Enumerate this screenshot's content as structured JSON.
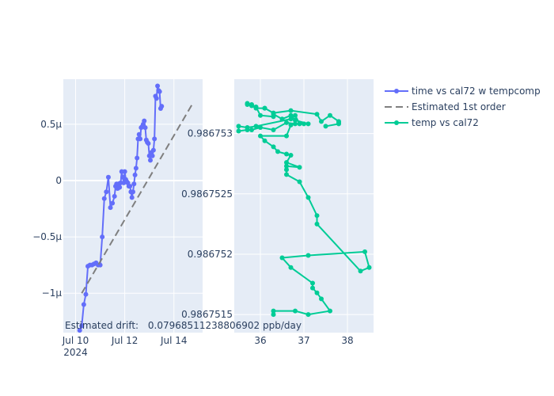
{
  "chart_data": [
    {
      "type": "line",
      "x_axis": {
        "kind": "date",
        "range": [
          "2024-07-09T12:00",
          "2024-07-15T04:00"
        ],
        "ticks": [
          {
            "value": "2024-07-10",
            "label": "Jul 10",
            "sublabel": "2024"
          },
          {
            "value": "2024-07-12",
            "label": "Jul 12"
          },
          {
            "value": "2024-07-14",
            "label": "Jul 14"
          }
        ]
      },
      "y_axis": {
        "range": [
          -1.35e-06,
          9e-07
        ],
        "ticks": [
          {
            "value": 5e-07,
            "label": "0.5μ"
          },
          {
            "value": 0,
            "label": "0"
          },
          {
            "value": -5e-07,
            "label": "−0.5μ"
          },
          {
            "value": -1e-06,
            "label": "−1μ"
          }
        ]
      },
      "series": [
        {
          "name": "time vs cal72 w tempcomp",
          "mode": "lines+markers",
          "color": "#636efa",
          "points": [
            [
              "2024-07-10T04:00",
              -1.33e-06
            ],
            [
              "2024-07-10T06:00",
              -1.29e-06
            ],
            [
              "2024-07-10T08:00",
              -1.1e-06
            ],
            [
              "2024-07-10T10:00",
              -1.01e-06
            ],
            [
              "2024-07-10T12:00",
              -7.6e-07
            ],
            [
              "2024-07-10T14:00",
              -7.5e-07
            ],
            [
              "2024-07-10T16:00",
              -7.5e-07
            ],
            [
              "2024-07-10T18:00",
              -7.4e-07
            ],
            [
              "2024-07-10T20:00",
              -7.3e-07
            ],
            [
              "2024-07-10T22:00",
              -7.5e-07
            ],
            [
              "2024-07-11T00:00",
              -7.5e-07
            ],
            [
              "2024-07-11T02:00",
              -5e-07
            ],
            [
              "2024-07-11T04:00",
              -1.6e-07
            ],
            [
              "2024-07-11T06:00",
              -1e-07
            ],
            [
              "2024-07-11T08:00",
              3e-08
            ],
            [
              "2024-07-11T10:00",
              -2.4e-07
            ],
            [
              "2024-07-11T12:00",
              -2e-07
            ],
            [
              "2024-07-11T14:00",
              -1.4e-07
            ],
            [
              "2024-07-11T15:00",
              -5e-08
            ],
            [
              "2024-07-11T16:00",
              -3e-08
            ],
            [
              "2024-07-11T17:00",
              -7e-08
            ],
            [
              "2024-07-11T18:00",
              -3e-08
            ],
            [
              "2024-07-11T19:00",
              -6e-08
            ],
            [
              "2024-07-11T20:00",
              -2e-08
            ],
            [
              "2024-07-11T21:00",
              8e-08
            ],
            [
              "2024-07-11T22:00",
              3e-08
            ],
            [
              "2024-07-11T23:00",
              -2e-08
            ],
            [
              "2024-07-12T00:00",
              8e-08
            ],
            [
              "2024-07-12T01:00",
              1e-08
            ],
            [
              "2024-07-12T02:00",
              -1e-08
            ],
            [
              "2024-07-12T03:00",
              -2e-08
            ],
            [
              "2024-07-12T04:00",
              -5e-08
            ],
            [
              "2024-07-12T05:00",
              -5e-08
            ],
            [
              "2024-07-12T06:00",
              -1e-07
            ],
            [
              "2024-07-12T07:00",
              -1.5e-07
            ],
            [
              "2024-07-12T08:00",
              -1e-07
            ],
            [
              "2024-07-12T09:00",
              -3e-08
            ],
            [
              "2024-07-12T10:00",
              5e-08
            ],
            [
              "2024-07-12T11:00",
              1.1e-07
            ],
            [
              "2024-07-12T12:00",
              2e-07
            ],
            [
              "2024-07-12T13:00",
              3.7e-07
            ],
            [
              "2024-07-12T14:00",
              4.1e-07
            ],
            [
              "2024-07-12T15:00",
              3.7e-07
            ],
            [
              "2024-07-12T16:00",
              4.7e-07
            ],
            [
              "2024-07-12T17:00",
              4.8e-07
            ],
            [
              "2024-07-12T18:00",
              5e-07
            ],
            [
              "2024-07-12T19:00",
              5.3e-07
            ],
            [
              "2024-07-12T20:00",
              4.7e-07
            ],
            [
              "2024-07-12T21:00",
              3.6e-07
            ],
            [
              "2024-07-12T22:00",
              3.4e-07
            ],
            [
              "2024-07-12T23:00",
              3.3e-07
            ],
            [
              "2024-07-13T00:00",
              2.2e-07
            ],
            [
              "2024-07-13T01:00",
              1.8e-07
            ],
            [
              "2024-07-13T02:00",
              2.5e-07
            ],
            [
              "2024-07-13T03:00",
              2.2e-07
            ],
            [
              "2024-07-13T04:00",
              2.7e-07
            ],
            [
              "2024-07-13T05:00",
              3.7e-07
            ],
            [
              "2024-07-13T06:00",
              7.5e-07
            ],
            [
              "2024-07-13T07:00",
              7.3e-07
            ],
            [
              "2024-07-13T08:00",
              8.4e-07
            ],
            [
              "2024-07-13T09:00",
              8e-07
            ],
            [
              "2024-07-13T10:00",
              7.9e-07
            ],
            [
              "2024-07-13T11:00",
              6.4e-07
            ],
            [
              "2024-07-13T12:00",
              6.6e-07
            ]
          ]
        },
        {
          "name": "Estimated 1st order",
          "mode": "lines",
          "dash": "dash",
          "color": "#7f7f7f",
          "points": [
            [
              "2024-07-10T06:00",
              -1e-06
            ],
            [
              "2024-07-14T18:00",
              6.8e-07
            ]
          ]
        }
      ],
      "annotation": {
        "label": "Estimated drift:",
        "value": "0.07968511238806902 ppb/day"
      }
    },
    {
      "type": "line",
      "x_axis": {
        "range": [
          35.4,
          38.6
        ],
        "ticks": [
          {
            "value": 36,
            "label": "36"
          },
          {
            "value": 37,
            "label": "37"
          },
          {
            "value": 38,
            "label": "38"
          }
        ]
      },
      "y_axis": {
        "range": [
          0.98675135,
          0.98675345
        ],
        "ticks": [
          {
            "value": 0.986753,
            "label": "0.986753"
          },
          {
            "value": 0.9867525,
            "label": "0.9867525"
          },
          {
            "value": 0.986752,
            "label": "0.986752"
          },
          {
            "value": 0.9867515,
            "label": "0.9867515"
          }
        ]
      },
      "series": [
        {
          "name": "temp vs cal72",
          "mode": "lines+markers",
          "color": "#00cc96",
          "points": [
            [
              36.3,
              0.9867515
            ],
            [
              36.3,
              0.98675153
            ],
            [
              36.8,
              0.98675153
            ],
            [
              37.1,
              0.9867515
            ],
            [
              37.6,
              0.98675153
            ],
            [
              37.4,
              0.98675163
            ],
            [
              37.3,
              0.98675168
            ],
            [
              37.2,
              0.98675172
            ],
            [
              37.2,
              0.98675176
            ],
            [
              36.7,
              0.98675189
            ],
            [
              36.5,
              0.98675197
            ],
            [
              37.1,
              0.98675199
            ],
            [
              38.4,
              0.98675202
            ],
            [
              38.5,
              0.98675189
            ],
            [
              38.3,
              0.98675186
            ],
            [
              37.3,
              0.98675225
            ],
            [
              37.3,
              0.98675232
            ],
            [
              37.1,
              0.98675247
            ],
            [
              36.9,
              0.9867526
            ],
            [
              36.6,
              0.98675266
            ],
            [
              36.6,
              0.9867527
            ],
            [
              36.6,
              0.98675273
            ],
            [
              36.9,
              0.98675272
            ],
            [
              36.6,
              0.98675276
            ],
            [
              36.7,
              0.98675282
            ],
            [
              36.6,
              0.98675283
            ],
            [
              36.4,
              0.98675285
            ],
            [
              36.3,
              0.98675289
            ],
            [
              36.1,
              0.98675294
            ],
            [
              36.0,
              0.98675298
            ],
            [
              36.6,
              0.98675298
            ],
            [
              36.7,
              0.98675307
            ],
            [
              36.8,
              0.98675308
            ],
            [
              36.6,
              0.98675309
            ],
            [
              36.3,
              0.98675303
            ],
            [
              36.0,
              0.98675305
            ],
            [
              35.8,
              0.98675303
            ],
            [
              35.7,
              0.98675303
            ],
            [
              35.5,
              0.98675302
            ],
            [
              35.5,
              0.98675306
            ],
            [
              35.7,
              0.98675305
            ],
            [
              35.9,
              0.98675306
            ],
            [
              36.7,
              0.98675312
            ],
            [
              36.8,
              0.98675315
            ],
            [
              36.9,
              0.98675308
            ],
            [
              37.0,
              0.98675308
            ],
            [
              37.1,
              0.98675308
            ],
            [
              36.8,
              0.98675311
            ],
            [
              36.7,
              0.98675315
            ],
            [
              36.5,
              0.98675312
            ],
            [
              36.3,
              0.98675316
            ],
            [
              36.3,
              0.98675314
            ],
            [
              36.0,
              0.98675315
            ],
            [
              35.9,
              0.98675322
            ],
            [
              35.8,
              0.98675324
            ],
            [
              35.7,
              0.98675325
            ],
            [
              35.7,
              0.98675324
            ],
            [
              35.8,
              0.98675323
            ],
            [
              35.9,
              0.98675321
            ],
            [
              36.1,
              0.98675321
            ],
            [
              36.1,
              0.98675321
            ],
            [
              36.3,
              0.98675317
            ],
            [
              36.7,
              0.98675319
            ],
            [
              37.3,
              0.98675316
            ],
            [
              37.4,
              0.9867531
            ],
            [
              37.6,
              0.98675315
            ],
            [
              37.8,
              0.9867531
            ],
            [
              37.8,
              0.98675309
            ],
            [
              37.8,
              0.98675308
            ],
            [
              37.5,
              0.98675306
            ]
          ]
        }
      ]
    }
  ],
  "legend": {
    "placement": "top-right",
    "items": [
      {
        "label": "time vs cal72 w tempcomp",
        "color": "#636efa",
        "style": "line-marker"
      },
      {
        "label": "Estimated 1st order",
        "color": "#7f7f7f",
        "style": "dash"
      },
      {
        "label": "temp vs cal72",
        "color": "#00cc96",
        "style": "line-marker"
      }
    ]
  }
}
